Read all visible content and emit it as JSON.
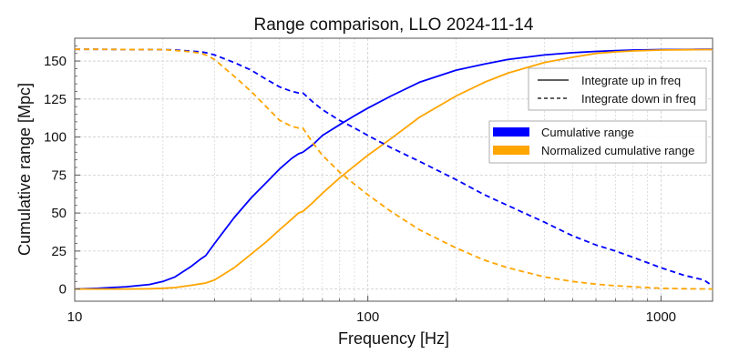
{
  "chart_data": {
    "type": "line",
    "title": "Range comparison, LLO 2024-11-14",
    "xlabel": "Frequency [Hz]",
    "ylabel": "Cumulative range [Mpc]",
    "xscale": "log",
    "xlim": [
      10,
      1500
    ],
    "ylim": [
      -8,
      165
    ],
    "x_ticks": [
      10,
      100,
      1000
    ],
    "x_tick_labels": [
      "10",
      "100",
      "1000"
    ],
    "y_ticks": [
      0,
      25,
      50,
      75,
      100,
      125,
      150
    ],
    "y_tick_labels": [
      "0",
      "25",
      "50",
      "75",
      "100",
      "125",
      "150"
    ],
    "grid": true,
    "colors": {
      "cumulative": "#0000ff",
      "normalized": "#ffa500",
      "grid": "#cccccc",
      "axes": "#555555"
    },
    "legend_style": {
      "placement": "top-right",
      "entries": [
        {
          "label": "Integrate up in freq",
          "linestyle": "solid"
        },
        {
          "label": "Integrate down in freq",
          "linestyle": "dashed"
        }
      ]
    },
    "legend_series": {
      "placement": "right",
      "entries": [
        {
          "label": "Cumulative range",
          "color": "#0000ff"
        },
        {
          "label": "Normalized cumulative range",
          "color": "#ffa500"
        }
      ]
    },
    "x": [
      10,
      12,
      15,
      18,
      20,
      22,
      25,
      27,
      28,
      30,
      35,
      40,
      45,
      50,
      55,
      58,
      60,
      65,
      70,
      80,
      90,
      100,
      120,
      150,
      200,
      250,
      300,
      400,
      500,
      600,
      700,
      800,
      1000,
      1200,
      1400,
      1500
    ],
    "series": [
      {
        "name": "Cumulative range",
        "style": "solid",
        "color": "#0000ff",
        "values": [
          0,
          0.5,
          1.5,
          3,
          5,
          8,
          15,
          20,
          22,
          30,
          47,
          60,
          70,
          79,
          86,
          89,
          90,
          95,
          101,
          108,
          114,
          119,
          127,
          136,
          144,
          148,
          151,
          154,
          155.5,
          156.3,
          156.8,
          157.2,
          157.5,
          157.6,
          157.7,
          157.7
        ]
      },
      {
        "name": "Normalized cumulative range",
        "style": "solid",
        "color": "#ffa500",
        "values": [
          0,
          0,
          0,
          0.2,
          0.5,
          1,
          2.5,
          3.5,
          4,
          6,
          14,
          23,
          31,
          39,
          46,
          50,
          51,
          57,
          63,
          73,
          81,
          88,
          99,
          113,
          127,
          136,
          142,
          149,
          152.5,
          155,
          156,
          156.6,
          157.2,
          157.4,
          157.5,
          157.5
        ]
      },
      {
        "name": "Cumulative range",
        "style": "dashed",
        "color": "#0000ff",
        "values": [
          157.7,
          157.7,
          157.6,
          157.5,
          157.5,
          157.3,
          156.5,
          156,
          155.5,
          154,
          149,
          144,
          138,
          133,
          130,
          129,
          129,
          123,
          118,
          111,
          106,
          101,
          93,
          84,
          72,
          62,
          55,
          44,
          35,
          29,
          25,
          21,
          14,
          9,
          6,
          2
        ]
      },
      {
        "name": "Normalized cumulative range",
        "style": "dashed",
        "color": "#ffa500",
        "values": [
          157.7,
          157.7,
          157.6,
          157.5,
          157.5,
          157,
          156,
          155,
          154,
          151,
          140,
          130,
          120,
          111,
          107,
          106,
          106,
          96,
          88,
          77,
          69,
          62,
          51,
          39,
          27,
          19,
          14,
          8,
          5,
          3.2,
          2.2,
          1.5,
          0.5,
          0.2,
          0.1,
          0
        ]
      }
    ]
  }
}
